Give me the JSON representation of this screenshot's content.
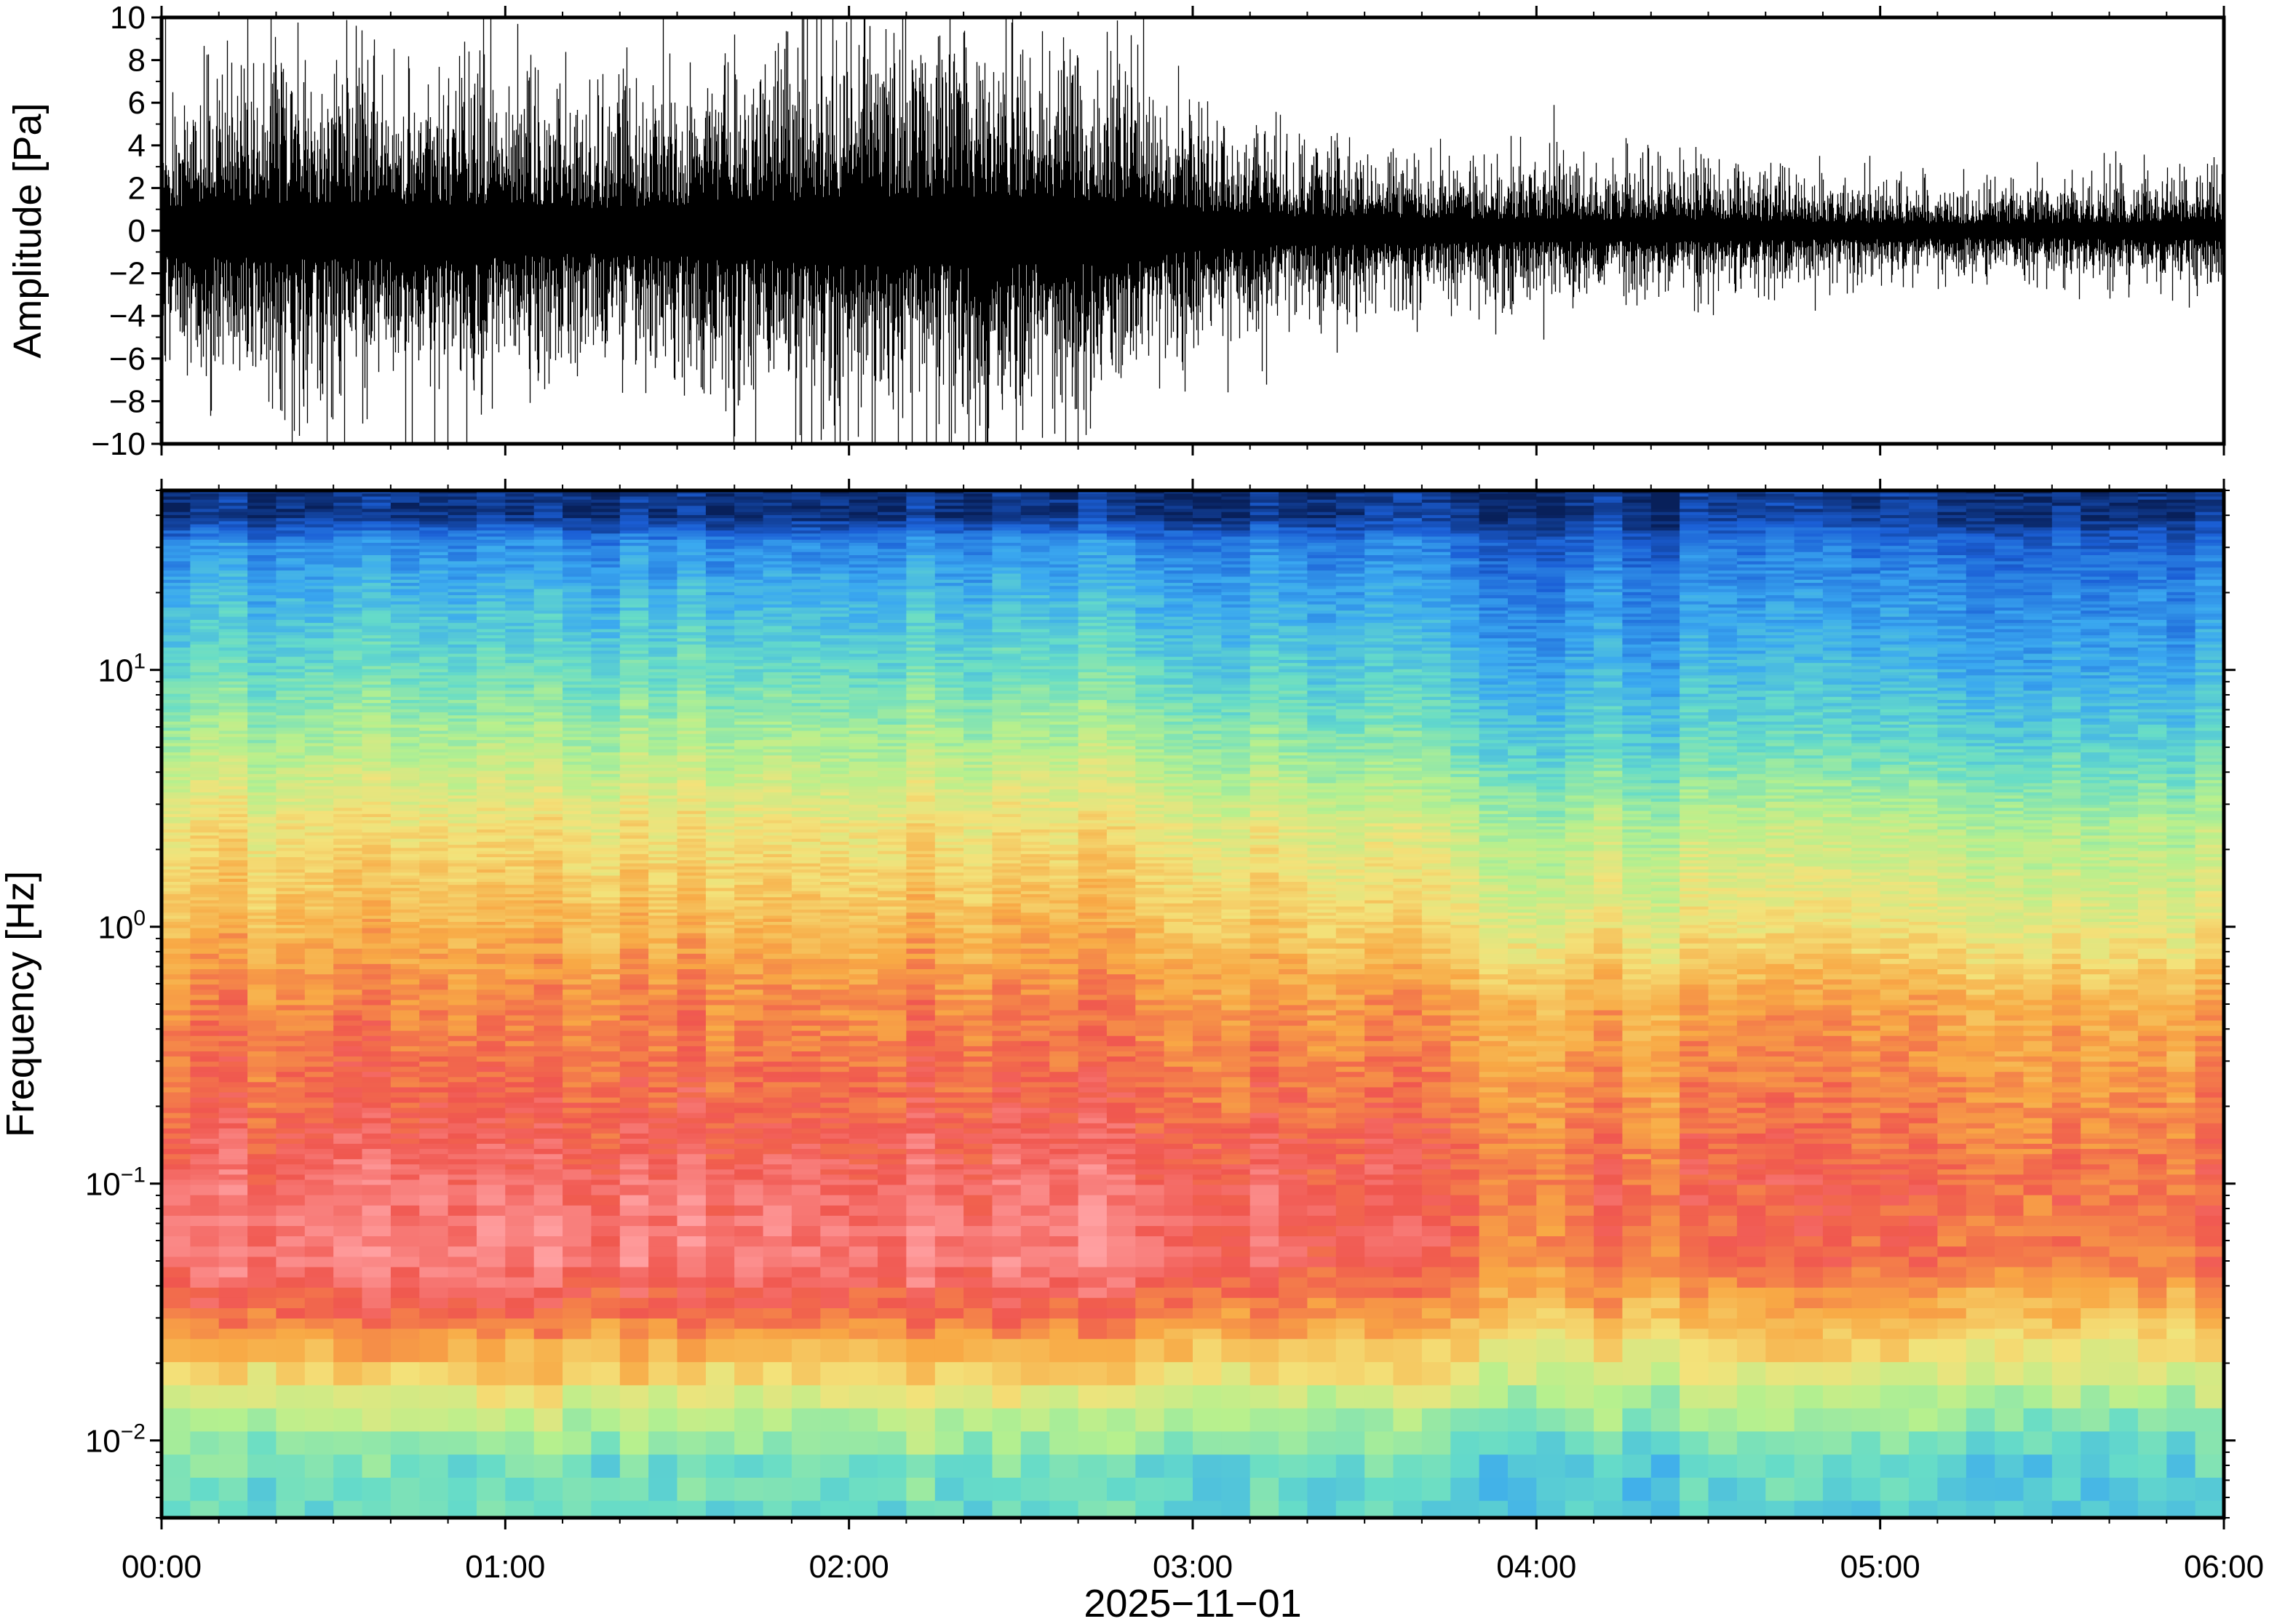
{
  "chart_data": [
    {
      "type": "line",
      "panel": "waveform",
      "ylabel": "Amplitude [Pa]",
      "ylim": [
        -10,
        10
      ],
      "yticks": [
        {
          "value": 10,
          "label": "10"
        },
        {
          "value": 8,
          "label": "8"
        },
        {
          "value": 6,
          "label": "6"
        },
        {
          "value": 4,
          "label": "4"
        },
        {
          "value": 2,
          "label": "2"
        },
        {
          "value": 0,
          "label": "0"
        },
        {
          "value": -2,
          "label": "−2"
        },
        {
          "value": -4,
          "label": "−4"
        },
        {
          "value": -6,
          "label": "−6"
        },
        {
          "value": -8,
          "label": "−8"
        },
        {
          "value": -10,
          "label": "−10"
        }
      ],
      "xlim": [
        "00:00",
        "06:00"
      ],
      "envelope": {
        "times": [
          "00:00",
          "00:15",
          "00:30",
          "00:45",
          "01:00",
          "01:15",
          "01:30",
          "01:45",
          "02:00",
          "02:15",
          "02:30",
          "02:45",
          "03:00",
          "03:15",
          "03:30",
          "03:45",
          "04:00",
          "04:15",
          "04:30",
          "04:45",
          "05:00",
          "05:15",
          "05:30",
          "05:45",
          "06:00"
        ],
        "typical": [
          3.2,
          3.5,
          3.8,
          3.5,
          3.3,
          3.0,
          3.4,
          3.9,
          4.3,
          4.5,
          4.4,
          4.0,
          2.6,
          1.9,
          1.8,
          1.6,
          1.5,
          1.4,
          1.4,
          1.2,
          1.0,
          0.9,
          1.0,
          1.1,
          1.2
        ],
        "peak_max": [
          9.8,
          9.5,
          10.0,
          9.0,
          8.5,
          8.0,
          8.8,
          10.0,
          10.0,
          10.0,
          9.5,
          9.0,
          6.5,
          4.5,
          4.5,
          4.0,
          6.5,
          5.0,
          3.8,
          3.5,
          4.0,
          3.2,
          3.5,
          4.5,
          4.0
        ],
        "peak_min": [
          -6.8,
          -7.0,
          -8.0,
          -7.0,
          -7.0,
          -6.5,
          -7.5,
          -10.0,
          -10.0,
          -8.0,
          -7.5,
          -7.0,
          -5.5,
          -5.0,
          -5.0,
          -4.0,
          -4.0,
          -3.5,
          -3.5,
          -3.0,
          -3.0,
          -2.8,
          -3.0,
          -3.5,
          -3.2
        ]
      }
    },
    {
      "type": "heatmap",
      "panel": "spectrogram",
      "ylabel": "Frequency [Hz]",
      "xlabel": "2025−11−01",
      "yscale": "log",
      "ylim": [
        0.005,
        50
      ],
      "yticks": [
        {
          "value": 10,
          "base": "10",
          "exp": "1"
        },
        {
          "value": 1,
          "base": "10",
          "exp": "0"
        },
        {
          "value": 0.1,
          "base": "10",
          "exp": "−1"
        },
        {
          "value": 0.01,
          "base": "10",
          "exp": "−2"
        }
      ],
      "xticks": [
        "00:00",
        "01:00",
        "02:00",
        "03:00",
        "04:00",
        "05:00",
        "06:00"
      ],
      "colormap": [
        "#08205a",
        "#1b5fd6",
        "#3aa8f0",
        "#66dcc8",
        "#b6f08e",
        "#f3e27a",
        "#f8a945",
        "#f0574f",
        "#ff9fa0"
      ],
      "time_frames": 72,
      "log10_frequency_profile": {
        "log10_f": [
          1.6,
          1.5,
          1.3,
          1.0,
          0.7,
          0.4,
          0.0,
          -0.3,
          -0.7,
          -1.0,
          -1.3,
          -1.5,
          -1.7,
          -1.9,
          -2.1,
          -2.3
        ],
        "level_first_half": [
          0.04,
          0.2,
          0.28,
          0.38,
          0.5,
          0.62,
          0.72,
          0.8,
          0.86,
          0.92,
          0.95,
          0.84,
          0.7,
          0.52,
          0.4,
          0.38
        ],
        "level_second_half": [
          0.04,
          0.14,
          0.2,
          0.27,
          0.36,
          0.5,
          0.6,
          0.74,
          0.8,
          0.84,
          0.82,
          0.72,
          0.6,
          0.45,
          0.35,
          0.32
        ]
      }
    }
  ]
}
